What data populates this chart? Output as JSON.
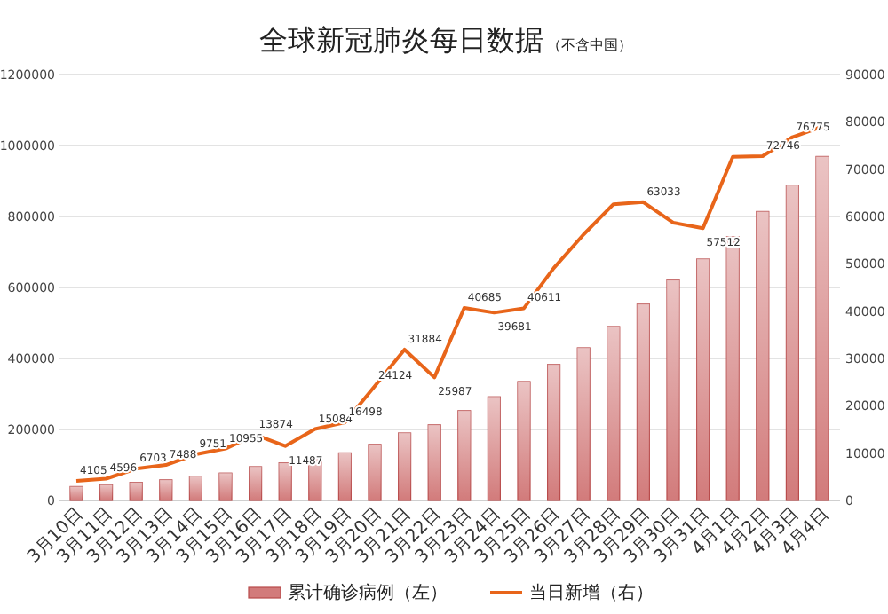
{
  "chart_data": {
    "type": "bar",
    "title": "全球新冠肺炎每日数据",
    "subtitle": "（不含中国）",
    "categories": [
      "3月10日",
      "3月11日",
      "3月12日",
      "3月13日",
      "3月14日",
      "3月15日",
      "3月16日",
      "3月17日",
      "3月18日",
      "3月19日",
      "3月20日",
      "3月21日",
      "3月22日",
      "3月23日",
      "3月24日",
      "3月25日",
      "3月26日",
      "3月27日",
      "3月28日",
      "3月29日",
      "3月30日",
      "3月31日",
      "4月1日",
      "4月2日",
      "4月3日",
      "4月4日"
    ],
    "series": [
      {
        "name": "累计确诊病例（左）",
        "color": "#d27b7b",
        "values": [
          39000,
          44000,
          51000,
          58000,
          68000,
          77000,
          95000,
          106000,
          119000,
          134000,
          158000,
          190000,
          213000,
          253000,
          292000,
          335000,
          383000,
          430000,
          490000,
          553000,
          621000,
          680000,
          743000,
          814000,
          888000,
          969000
        ]
      },
      {
        "name": "当日新增（右）",
        "type": "line",
        "axis": "y2",
        "color": "#e8651a",
        "values": [
          4105,
          4596,
          6703,
          7488,
          9751,
          10955,
          13874,
          11487,
          15084,
          16498,
          24124,
          31884,
          25987,
          40685,
          39681,
          40611,
          49100,
          56200,
          62600,
          63033,
          58700,
          57512,
          72600,
          72746,
          76775,
          79000
        ],
        "value_labels": [
          "4105",
          "4596",
          "6703",
          "7488",
          "9751",
          "10955",
          "13874",
          "11487",
          "15084",
          "16498",
          "24124",
          "31884",
          "25987",
          "40685",
          "39681",
          "40611",
          null,
          null,
          null,
          "63033",
          null,
          "57512",
          null,
          "72746",
          "76775",
          null
        ]
      }
    ],
    "ylim": [
      0,
      1200000
    ],
    "yticks": [
      0,
      200000,
      400000,
      600000,
      800000,
      1000000,
      1200000
    ],
    "y2lim": [
      0,
      90000
    ],
    "y2ticks": [
      0,
      10000,
      20000,
      30000,
      40000,
      50000,
      60000,
      70000,
      80000,
      90000
    ],
    "grid": "y",
    "legend": "bottom",
    "marker": "none",
    "line_style": "solid"
  }
}
